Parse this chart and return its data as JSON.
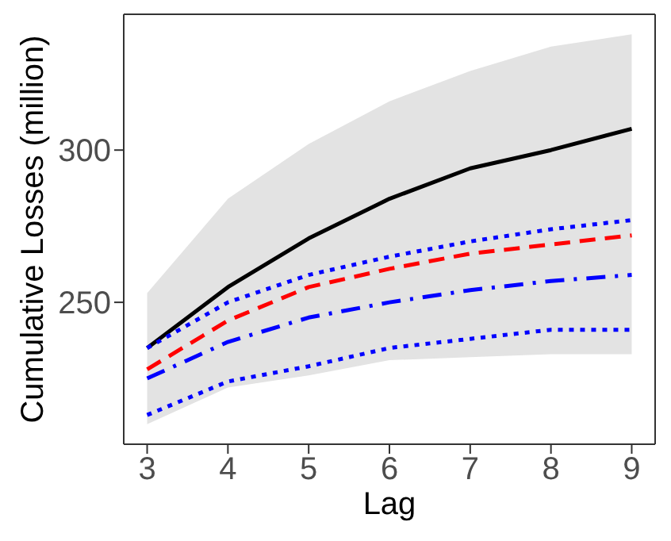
{
  "chart_data": {
    "type": "line",
    "xlabel": "Lag",
    "ylabel": "Cumulative Losses (million)",
    "x": [
      3,
      4,
      5,
      6,
      7,
      8,
      9
    ],
    "xlim": [
      2.71,
      9.29
    ],
    "xticks": [
      3,
      4,
      5,
      6,
      7,
      8,
      9
    ],
    "ylim": [
      203.4,
      344.6
    ],
    "yticks": [
      250,
      300
    ],
    "grid": false,
    "legend": false,
    "marker": "none",
    "series": [
      {
        "color": "#000000",
        "line_style": "solid",
        "values": [
          235,
          255,
          271,
          284,
          294,
          300,
          307
        ],
        "lower": [
          210,
          222,
          226,
          231,
          232,
          233,
          233
        ],
        "upper": [
          253,
          284,
          302,
          316,
          326,
          334,
          338
        ]
      },
      {
        "color": "#0000ff",
        "line_style": "dotted",
        "values": [
          235,
          250,
          259,
          265,
          270,
          274,
          277
        ]
      },
      {
        "color": "#ff0000",
        "line_style": "dashed",
        "values": [
          228,
          244,
          255,
          261,
          266,
          269,
          272
        ]
      },
      {
        "color": "#0000ff",
        "line_style": "dashdot",
        "values": [
          225,
          237,
          245,
          250,
          254,
          257,
          259
        ]
      },
      {
        "color": "#0000ff",
        "line_style": "dotted",
        "values": [
          213,
          224,
          229,
          235,
          238,
          241,
          241
        ]
      }
    ]
  }
}
